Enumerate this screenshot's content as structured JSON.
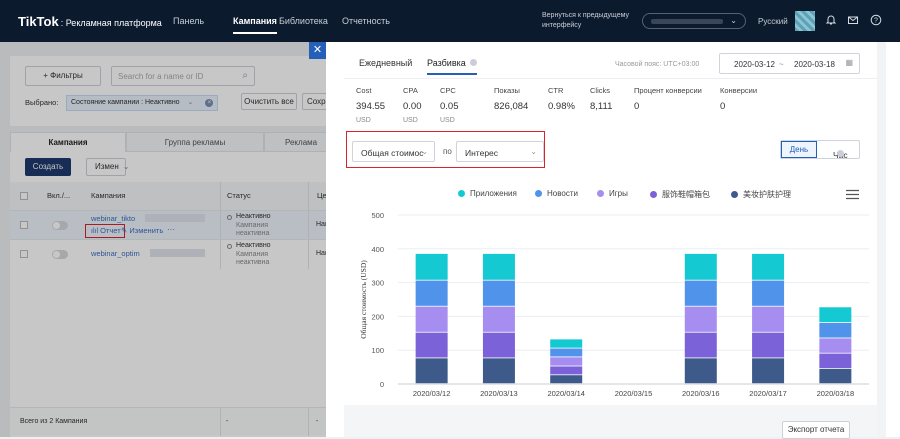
{
  "header": {
    "brand": "TikTok",
    "brand_sub": ": Рекламная платформа",
    "nav": [
      "Панель",
      "Кампания",
      "Библиотека",
      "Отчетность"
    ],
    "back_link": "Вернуться к предыдущему интерфейсу",
    "language": "Русский"
  },
  "campaign_page": {
    "filters_button": "+ Фильтры",
    "search_placeholder": "Search for a name or ID",
    "selected_label": "Выбрано:",
    "selected_chip": "Состояние кампании : Неактивно",
    "clear_all": "Очистить все",
    "save_partial": "Сохра",
    "tabs": [
      "Кампания",
      "Группа рекламы",
      "Реклама"
    ],
    "create_button": "Создать",
    "edit_dropdown": "Измен",
    "columns": [
      "Вкл./...",
      "Кампания",
      "Статус",
      "Цель"
    ],
    "rows": [
      {
        "name": "webinar_tikto",
        "status": "Неактивно",
        "substatus": "Кампания неактивна",
        "goal": "Нагру",
        "report_link": "Отчет",
        "edit_link": "Изменить",
        "more": "···"
      },
      {
        "name": "webinar_optim",
        "status": "Неактивно",
        "substatus": "Кампания неактивна",
        "goal": "Нагру"
      }
    ],
    "footer_total": "Всего из 2 Кампания",
    "footer_dash": "-"
  },
  "report": {
    "tabs": [
      "Ежедневный",
      "Разбивка"
    ],
    "timezone": "Часовой пояс: UTC+03:00",
    "date_from": "2020-03-12",
    "date_sep": "~",
    "date_to": "2020-03-18",
    "metrics": [
      {
        "label": "Cost",
        "value": "394.55",
        "unit": "USD"
      },
      {
        "label": "CPA",
        "value": "0.00",
        "unit": "USD"
      },
      {
        "label": "CPC",
        "value": "0.05",
        "unit": "USD"
      },
      {
        "label": "Показы",
        "value": "826,084"
      },
      {
        "label": "CTR",
        "value": "0.98%"
      },
      {
        "label": "Clicks",
        "value": "8,111"
      },
      {
        "label": "Процент конверсии",
        "value": "0"
      },
      {
        "label": "Конверсии",
        "value": "0"
      }
    ],
    "metric_select": "Общая стоимос",
    "by_label": "по",
    "dimension_select": "Интерес",
    "granularity": [
      "День",
      "Час"
    ],
    "export_button": "Экспорт отчета"
  },
  "colors": {
    "nav_bg": "#0c1a2e",
    "accent": "#2560b8",
    "highlight_red": "#d9242e"
  },
  "chart_data": {
    "type": "bar",
    "stacked": true,
    "ylabel": "Общая стоимость (USD)",
    "ylim": [
      0,
      500
    ],
    "yticks": [
      0,
      100,
      200,
      300,
      400,
      500
    ],
    "legend_position": "top",
    "categories": [
      "2020/03/12",
      "2020/03/13",
      "2020/03/14",
      "2020/03/15",
      "2020/03/16",
      "2020/03/17",
      "2020/03/18"
    ],
    "series": [
      {
        "name": "美妆护肤护理",
        "color": "#3d5a8a",
        "values": [
          76,
          76,
          26,
          0,
          76,
          76,
          45
        ]
      },
      {
        "name": "服饰鞋帽箱包",
        "color": "#7b62d8",
        "values": [
          76,
          76,
          26,
          0,
          76,
          76,
          45
        ]
      },
      {
        "name": "Игры",
        "color": "#a58ef0",
        "values": [
          77,
          77,
          27,
          0,
          77,
          77,
          45
        ]
      },
      {
        "name": "Новости",
        "color": "#4f93eb",
        "values": [
          77,
          77,
          26,
          0,
          77,
          77,
          46
        ]
      },
      {
        "name": "Приложения",
        "color": "#15c9d2",
        "values": [
          79,
          79,
          27,
          0,
          79,
          79,
          46
        ]
      }
    ],
    "legend_order": [
      "Приложения",
      "Новости",
      "Игры",
      "服饰鞋帽箱包",
      "美妆护肤护理"
    ]
  }
}
